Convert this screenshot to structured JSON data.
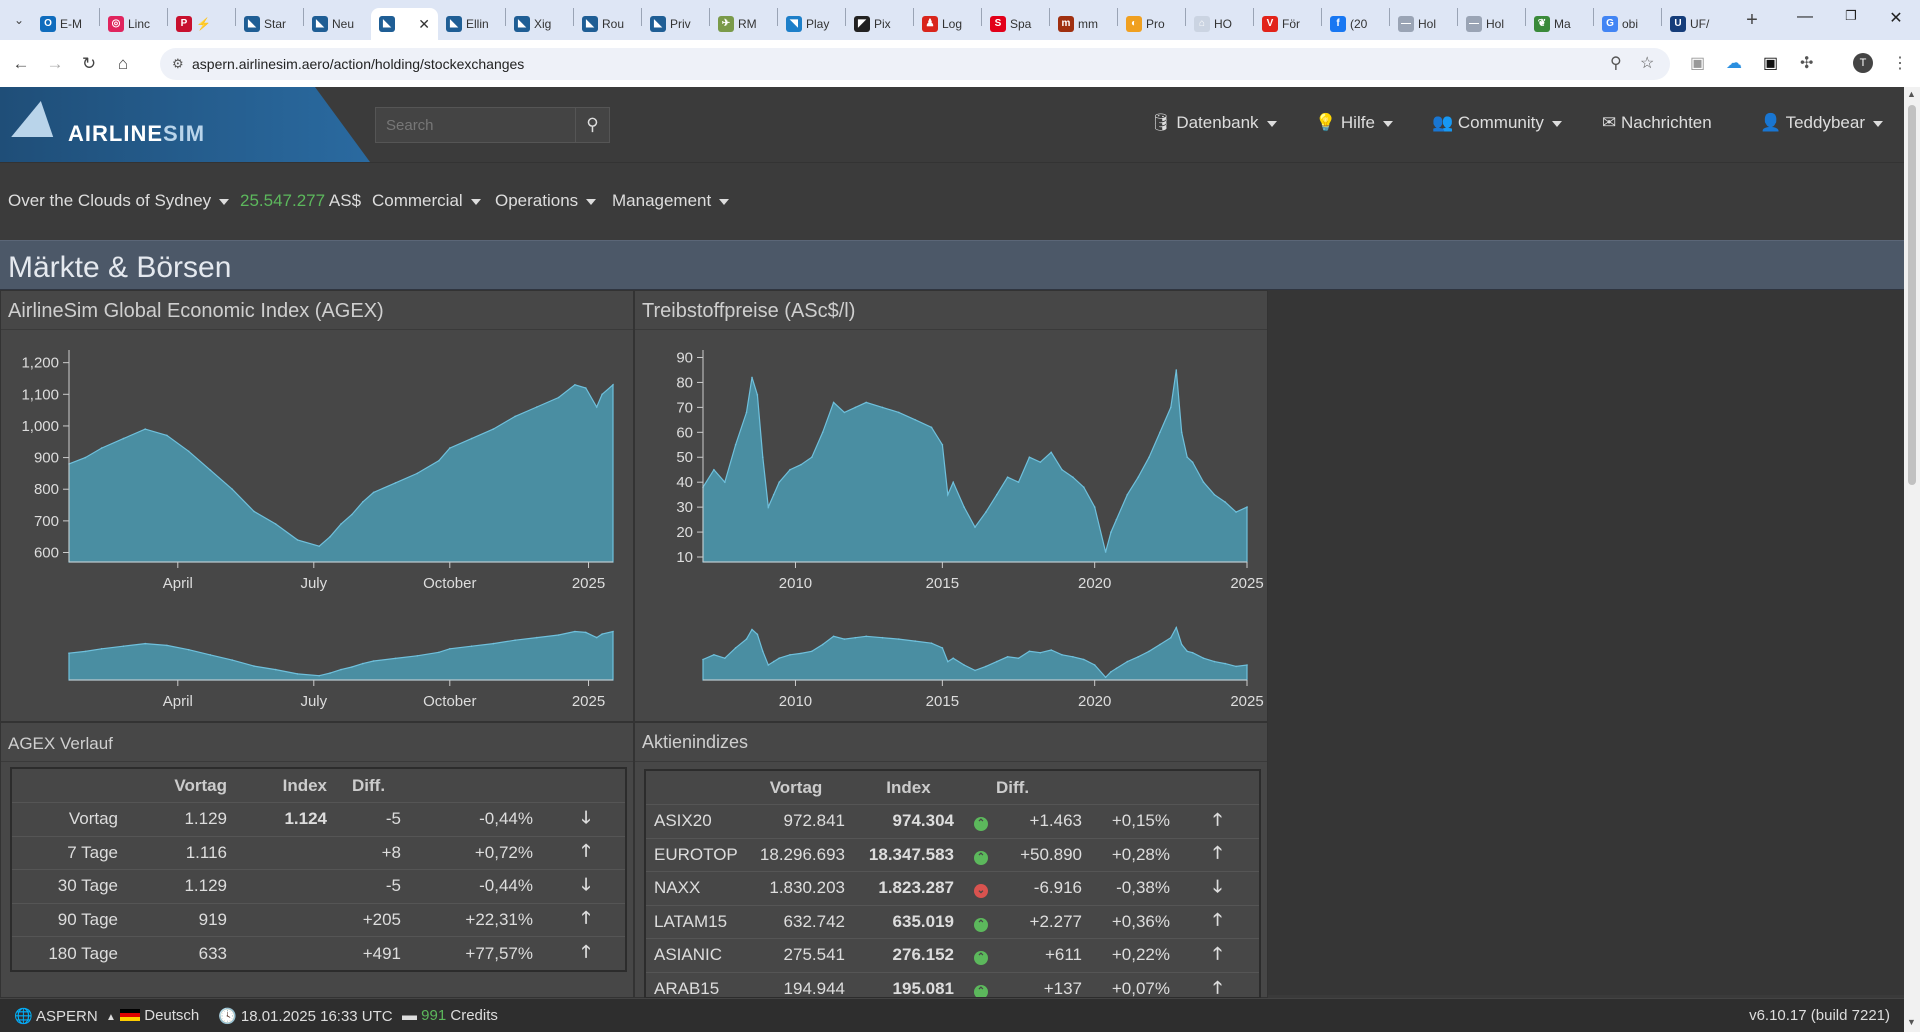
{
  "browser": {
    "tabs": [
      {
        "label": "E-M",
        "color": "#0f6cbd",
        "glyph": "O"
      },
      {
        "label": "Linc",
        "color": "#e0245e",
        "glyph": "◎"
      },
      {
        "label": "⚡",
        "color": "#c8102e",
        "glyph": "P"
      },
      {
        "label": "Star",
        "color": "#1f5e95",
        "glyph": "◣"
      },
      {
        "label": "Neu",
        "color": "#1f5e95",
        "glyph": "◣"
      },
      {
        "label": "",
        "color": "#1f5e95",
        "glyph": "◣"
      },
      {
        "label": "Ellin",
        "color": "#1f5e95",
        "glyph": "◣"
      },
      {
        "label": "Xig",
        "color": "#1f5e95",
        "glyph": "◣"
      },
      {
        "label": "Rou",
        "color": "#1f5e95",
        "glyph": "◣"
      },
      {
        "label": "Priv",
        "color": "#1f5e95",
        "glyph": "◣"
      },
      {
        "label": "RM",
        "color": "#7a9a4a",
        "glyph": "✈"
      },
      {
        "label": "Play",
        "color": "#1d7fc9",
        "glyph": "◥"
      },
      {
        "label": "Pix",
        "color": "#222222",
        "glyph": "◤"
      },
      {
        "label": "Log",
        "color": "#d9251c",
        "glyph": "♟"
      },
      {
        "label": "Spa",
        "color": "#e2001a",
        "glyph": "S"
      },
      {
        "label": "mm",
        "color": "#a03010",
        "glyph": "m"
      },
      {
        "label": "Pro",
        "color": "#f0a020",
        "glyph": "◐"
      },
      {
        "label": "HO",
        "color": "#cbd4e2",
        "glyph": "⌂"
      },
      {
        "label": "För",
        "color": "#e2231a",
        "glyph": "V"
      },
      {
        "label": "(20",
        "color": "#1877f2",
        "glyph": "f"
      },
      {
        "label": "Hol",
        "color": "#9aa4b5",
        "glyph": "—"
      },
      {
        "label": "Hol",
        "color": "#9aa4b5",
        "glyph": "—"
      },
      {
        "label": "Ma",
        "color": "#3a8a3a",
        "glyph": "❦"
      },
      {
        "label": "obi",
        "color": "#4285f4",
        "glyph": "G"
      },
      {
        "label": "UF/",
        "color": "#153d7a",
        "glyph": "U"
      }
    ],
    "url": "aspern.airlinesim.aero/action/holding/stockexchanges"
  },
  "header": {
    "logo_text_a": "AIRLINE",
    "logo_text_b": "SIM",
    "search_placeholder": "Search",
    "nav": {
      "datenbank": "Datenbank",
      "hilfe": "Hilfe",
      "community": "Community",
      "nachrichten": "Nachrichten",
      "user": "Teddybear"
    }
  },
  "subnav": {
    "airline": "Over the Clouds of Sydney",
    "balance": "25.547.277",
    "currency": "AS$",
    "commercial": "Commercial",
    "operations": "Operations",
    "management": "Management"
  },
  "page_title": "Märkte & Börsen",
  "panels": {
    "agex_title": "AirlineSim Global Economic Index (AGEX)",
    "fuel_title": "Treibstoffpreise (ASc$/l)",
    "agex_history_title": "AGEX Verlauf",
    "indices_title": "Aktienindizes"
  },
  "chart_data": [
    {
      "type": "area",
      "title": "AirlineSim Global Economic Index (AGEX)",
      "x_ticks": [
        "April",
        "July",
        "October",
        "2025"
      ],
      "y_ticks": [
        600,
        700,
        800,
        900,
        1000,
        1100,
        1200
      ],
      "ylim": [
        570,
        1240
      ],
      "color": "#4a8ea2",
      "x": [
        0,
        0.03,
        0.06,
        0.1,
        0.14,
        0.18,
        0.22,
        0.26,
        0.3,
        0.34,
        0.38,
        0.42,
        0.46,
        0.48,
        0.5,
        0.52,
        0.54,
        0.56,
        0.6,
        0.64,
        0.68,
        0.7,
        0.74,
        0.78,
        0.82,
        0.86,
        0.9,
        0.93,
        0.95,
        0.97,
        0.98,
        1.0
      ],
      "values": [
        880,
        900,
        930,
        960,
        990,
        970,
        920,
        860,
        800,
        730,
        690,
        640,
        620,
        650,
        690,
        720,
        760,
        790,
        820,
        850,
        890,
        930,
        960,
        990,
        1030,
        1060,
        1090,
        1130,
        1120,
        1060,
        1100,
        1130
      ]
    },
    {
      "type": "area",
      "title": "Treibstoffpreise (ASc$/l)",
      "x_ticks": [
        "2010",
        "2015",
        "2020",
        "2025"
      ],
      "y_ticks": [
        10,
        20,
        30,
        40,
        50,
        60,
        70,
        80,
        90
      ],
      "ylim": [
        8,
        93
      ],
      "color": "#4a8ea2",
      "x": [
        0,
        0.02,
        0.04,
        0.06,
        0.08,
        0.09,
        0.1,
        0.11,
        0.12,
        0.13,
        0.14,
        0.16,
        0.18,
        0.2,
        0.22,
        0.24,
        0.26,
        0.28,
        0.3,
        0.33,
        0.36,
        0.39,
        0.42,
        0.44,
        0.45,
        0.46,
        0.48,
        0.5,
        0.52,
        0.54,
        0.56,
        0.58,
        0.6,
        0.62,
        0.64,
        0.66,
        0.68,
        0.7,
        0.72,
        0.74,
        0.75,
        0.76,
        0.78,
        0.8,
        0.82,
        0.84,
        0.86,
        0.87,
        0.88,
        0.89,
        0.9,
        0.92,
        0.94,
        0.96,
        0.98,
        1.0
      ],
      "values": [
        38,
        45,
        40,
        55,
        68,
        82,
        75,
        50,
        30,
        35,
        40,
        45,
        47,
        50,
        60,
        72,
        68,
        70,
        72,
        70,
        68,
        65,
        62,
        55,
        35,
        40,
        30,
        22,
        28,
        35,
        42,
        40,
        50,
        48,
        52,
        45,
        42,
        38,
        30,
        12,
        20,
        25,
        35,
        42,
        50,
        60,
        70,
        85,
        60,
        50,
        48,
        40,
        35,
        32,
        28,
        30
      ]
    }
  ],
  "agex_table": {
    "headers": [
      "",
      "Vortag",
      "Index",
      "Diff.",
      "",
      ""
    ],
    "rows": [
      {
        "label": "Vortag",
        "prev": "1.129",
        "index": "1.124",
        "diff": "-5",
        "pct": "-0,44%",
        "dir": "neg"
      },
      {
        "label": "7 Tage",
        "prev": "1.116",
        "index": "",
        "diff": "+8",
        "pct": "+0,72%",
        "dir": "pos"
      },
      {
        "label": "30 Tage",
        "prev": "1.129",
        "index": "",
        "diff": "-5",
        "pct": "-0,44%",
        "dir": "neg"
      },
      {
        "label": "90 Tage",
        "prev": "919",
        "index": "",
        "diff": "+205",
        "pct": "+22,31%",
        "dir": "pos"
      },
      {
        "label": "180 Tage",
        "prev": "633",
        "index": "",
        "diff": "+491",
        "pct": "+77,57%",
        "dir": "pos"
      }
    ]
  },
  "indices_table": {
    "headers": [
      "",
      "Vortag",
      "Index",
      "Diff."
    ],
    "rows": [
      {
        "name": "ASIX20",
        "prev": "972.841",
        "index": "974.304",
        "diff": "+1.463",
        "pct": "+0,15%",
        "dir": "pos"
      },
      {
        "name": "EUROTOP",
        "prev": "18.296.693",
        "index": "18.347.583",
        "diff": "+50.890",
        "pct": "+0,28%",
        "dir": "pos"
      },
      {
        "name": "NAXX",
        "prev": "1.830.203",
        "index": "1.823.287",
        "diff": "-6.916",
        "pct": "-0,38%",
        "dir": "neg"
      },
      {
        "name": "LATAM15",
        "prev": "632.742",
        "index": "635.019",
        "diff": "+2.277",
        "pct": "+0,36%",
        "dir": "pos"
      },
      {
        "name": "ASIANIC",
        "prev": "275.541",
        "index": "276.152",
        "diff": "+611",
        "pct": "+0,22%",
        "dir": "pos"
      },
      {
        "name": "ARAB15",
        "prev": "194.944",
        "index": "195.081",
        "diff": "+137",
        "pct": "+0,07%",
        "dir": "pos"
      }
    ]
  },
  "statusbar": {
    "server": "ASPERN",
    "language": "Deutsch",
    "datetime": "18.01.2025 16:33 UTC",
    "credits_num": "991",
    "credits_label": "Credits",
    "version": "v6.10.17 (build 7221)"
  }
}
